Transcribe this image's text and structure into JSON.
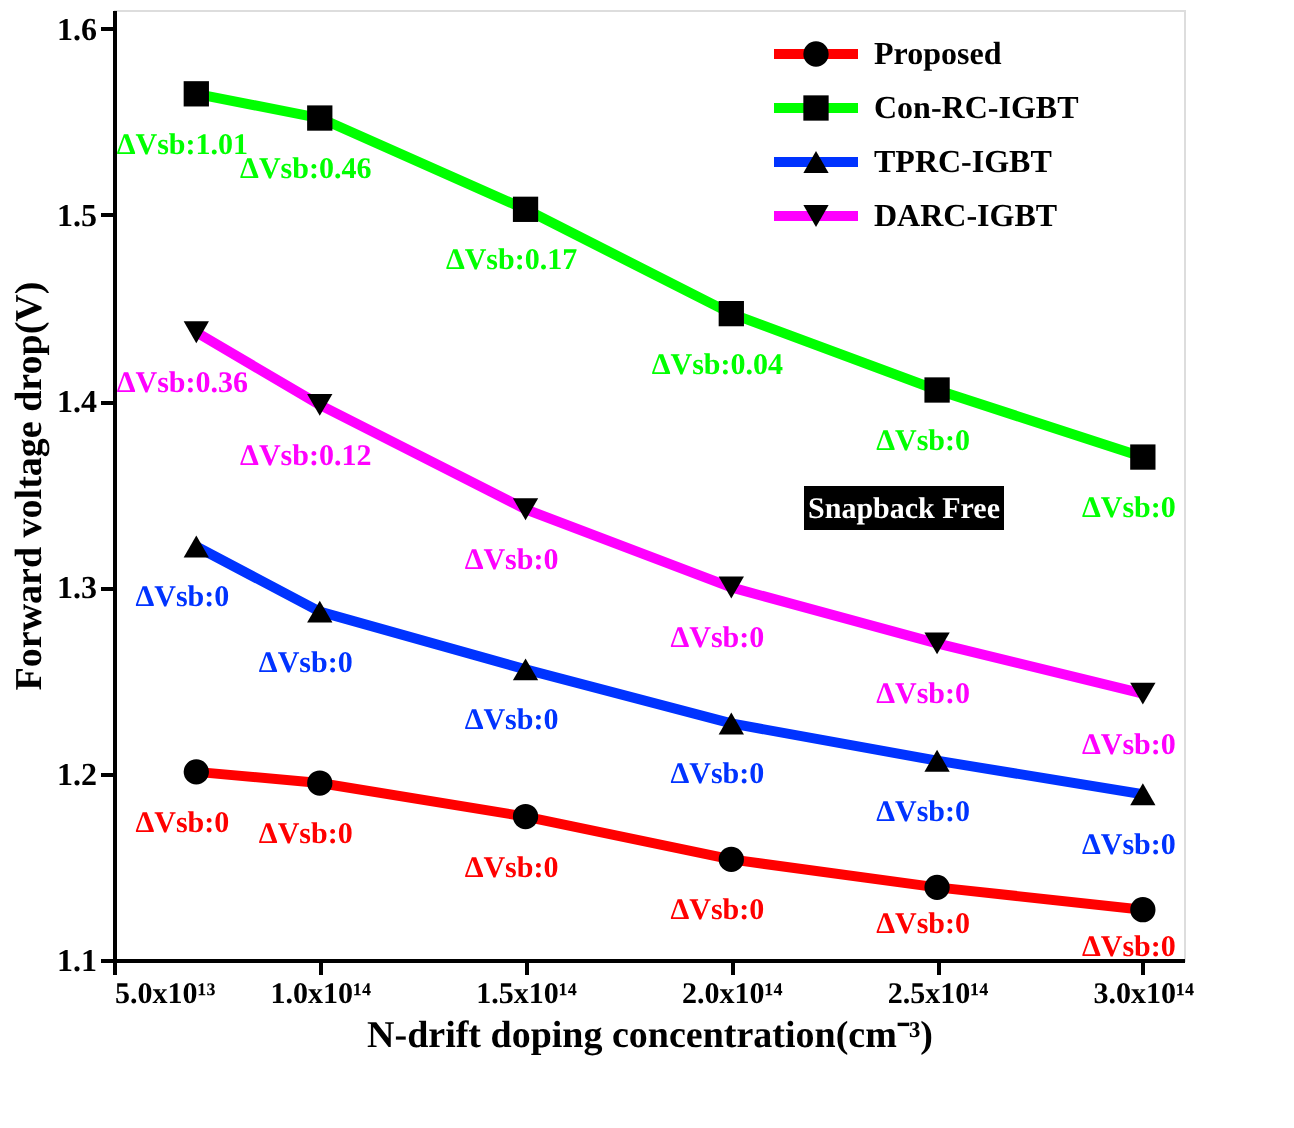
{
  "chart_data": {
    "type": "line",
    "xlabel": "N-drift doping concentration(cm⁻³)",
    "ylabel": "Forward voltage drop(V)",
    "x": [
      70000000000000.0,
      100000000000000.0,
      150000000000000.0,
      200000000000000.0,
      250000000000000.0,
      300000000000000.0
    ],
    "series": [
      {
        "name": "Proposed",
        "color": "#ff0000",
        "marker": "circle",
        "values": [
          1.201,
          1.195,
          1.177,
          1.154,
          1.139,
          1.127
        ]
      },
      {
        "name": "Con-RC-IGBT",
        "color": "#00ff00",
        "marker": "square",
        "values": [
          1.565,
          1.552,
          1.503,
          1.447,
          1.406,
          1.37
        ]
      },
      {
        "name": "TPRC-IGBT",
        "color": "#0033ff",
        "marker": "triangle",
        "values": [
          1.322,
          1.287,
          1.256,
          1.227,
          1.207,
          1.189
        ]
      },
      {
        "name": "DARC-IGBT",
        "color": "#ff00ff",
        "marker": "triangle-down",
        "values": [
          1.437,
          1.398,
          1.342,
          1.3,
          1.27,
          1.243
        ]
      }
    ],
    "xlim": [
      50000000000000.0,
      310000000000000.0
    ],
    "ylim": [
      1.1,
      1.61
    ],
    "xticks": [
      {
        "value": 50000000000000.0,
        "label": "5.0x10¹³"
      },
      {
        "value": 100000000000000.0,
        "label": "1.0x10¹⁴"
      },
      {
        "value": 150000000000000.0,
        "label": "1.5x10¹⁴"
      },
      {
        "value": 200000000000000.0,
        "label": "2.0x10¹⁴"
      },
      {
        "value": 250000000000000.0,
        "label": "2.5x10¹⁴"
      },
      {
        "value": 300000000000000.0,
        "label": "3.0x10¹⁴"
      }
    ],
    "yticks": [
      1.1,
      1.2,
      1.3,
      1.4,
      1.5,
      1.6
    ],
    "legend": "top right",
    "grid": false,
    "line_style": "solid",
    "annotations": [
      {
        "text": "ΔVsb:1.01",
        "x": 70000000000000.0,
        "y": 1.565
      },
      {
        "text": "ΔVsb:0.46",
        "x": 100000000000000.0,
        "y": 1.552
      },
      {
        "text": "ΔVsb:0.17",
        "x": 150000000000000.0,
        "y": 1.503
      },
      {
        "text": "ΔVsb:0.04",
        "x": 200000000000000.0,
        "y": 1.447
      },
      {
        "text": "ΔVsb:0",
        "x": 250000000000000.0,
        "y": 1.406
      },
      {
        "text": "ΔVsb:0",
        "x": 300000000000000.0,
        "y": 1.37
      },
      {
        "text": "ΔVsb:0.36",
        "x": 70000000000000.0,
        "y": 1.437
      },
      {
        "text": "ΔVsb:0.12",
        "x": 100000000000000.0,
        "y": 1.398
      },
      {
        "text": "ΔVsb:0",
        "x": 150000000000000.0,
        "y": 1.342
      },
      {
        "text": "ΔVsb:0",
        "x": 200000000000000.0,
        "y": 1.3
      },
      {
        "text": "ΔVsb:0",
        "x": 250000000000000.0,
        "y": 1.27
      },
      {
        "text": "ΔVsb:0",
        "x": 300000000000000.0,
        "y": 1.243
      },
      {
        "text": "ΔVsb:0",
        "x": 70000000000000.0,
        "y": 1.322
      },
      {
        "text": "ΔVsb:0",
        "x": 100000000000000.0,
        "y": 1.287
      },
      {
        "text": "ΔVsb:0",
        "x": 150000000000000.0,
        "y": 1.256
      },
      {
        "text": "ΔVsb:0",
        "x": 200000000000000.0,
        "y": 1.227
      },
      {
        "text": "ΔVsb:0",
        "x": 250000000000000.0,
        "y": 1.207
      },
      {
        "text": "ΔVsb:0",
        "x": 300000000000000.0,
        "y": 1.189
      },
      {
        "text": "ΔVsb:0",
        "x": 70000000000000.0,
        "y": 1.201
      },
      {
        "text": "ΔVsb:0",
        "x": 100000000000000.0,
        "y": 1.195
      },
      {
        "text": "ΔVsb:0",
        "x": 150000000000000.0,
        "y": 1.177
      },
      {
        "text": "ΔVsb:0",
        "x": 200000000000000.0,
        "y": 1.154
      },
      {
        "text": "ΔVsb:0",
        "x": 250000000000000.0,
        "y": 1.139
      },
      {
        "text": "ΔVsb:0",
        "x": 300000000000000.0,
        "y": 1.127
      },
      "Snapback Free"
    ]
  }
}
